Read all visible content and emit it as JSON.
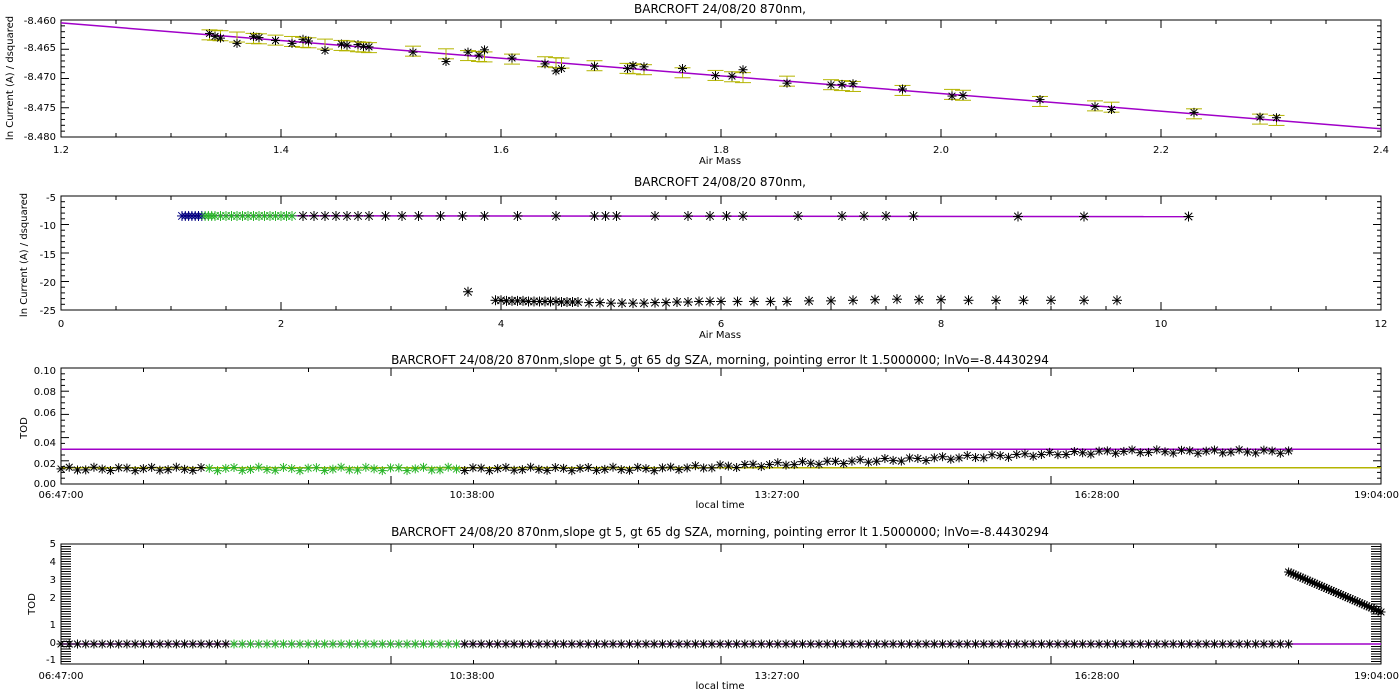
{
  "colors": {
    "axes": "#000000",
    "fit_line": "#a000c8",
    "error_bar": "#b4b400",
    "morning_points": "#000000",
    "selected_points": "#28b428",
    "first_points": "#000080"
  },
  "chart_data": [
    {
      "type": "scatter",
      "title": "BARCROFT 24/08/20 870nm,",
      "xlabel": "Air Mass",
      "ylabel": "ln Current (A) / dsquared",
      "xlim": [
        1.2,
        2.4
      ],
      "ylim": [
        -8.48,
        -8.46
      ],
      "xticks": [
        "1.2",
        "1.4",
        "1.6",
        "1.8",
        "2.0",
        "2.2",
        "2.4"
      ],
      "yticks": [
        "-8.480",
        "-8.475",
        "-8.470",
        "-8.465",
        "-8.460"
      ],
      "series": [
        {
          "role": "fit",
          "type": "line",
          "x": [
            1.2,
            2.4
          ],
          "y": [
            -8.4605,
            -8.4786
          ]
        },
        {
          "role": "points",
          "type": "scatter_errorbar",
          "x": [
            1.335,
            1.34,
            1.345,
            1.36,
            1.375,
            1.38,
            1.395,
            1.41,
            1.42,
            1.425,
            1.44,
            1.455,
            1.46,
            1.47,
            1.475,
            1.48,
            1.52,
            1.55,
            1.57,
            1.58,
            1.585,
            1.61,
            1.64,
            1.65,
            1.655,
            1.685,
            1.715,
            1.72,
            1.73,
            1.765,
            1.795,
            1.81,
            1.82,
            1.86,
            1.9,
            1.91,
            1.92,
            1.965,
            2.01,
            2.02,
            2.09,
            2.14,
            2.155,
            2.23,
            2.29,
            2.305
          ],
          "y": [
            -8.4623,
            -8.4628,
            -8.4631,
            -8.464,
            -8.4628,
            -8.463,
            -8.4635,
            -8.464,
            -8.4633,
            -8.4636,
            -8.4652,
            -8.4641,
            -8.4643,
            -8.4642,
            -8.4645,
            -8.4646,
            -8.4655,
            -8.4671,
            -8.4655,
            -8.466,
            -8.4651,
            -8.4665,
            -8.4675,
            -8.4687,
            -8.4683,
            -8.4679,
            -8.4683,
            -8.4678,
            -8.468,
            -8.4683,
            -8.4695,
            -8.4696,
            -8.4685,
            -8.4708,
            -8.4711,
            -8.471,
            -8.4709,
            -8.4718,
            -8.473,
            -8.4729,
            -8.4736,
            -8.4748,
            -8.4753,
            -8.4758,
            -8.4766,
            -8.4767
          ]
        }
      ]
    },
    {
      "type": "scatter",
      "title": "BARCROFT 24/08/20 870nm,",
      "xlabel": "Air Mass",
      "ylabel": "ln Current (A) / dsquared",
      "xlim": [
        0,
        12
      ],
      "ylim": [
        -25,
        -5
      ],
      "xticks": [
        "0",
        "2",
        "4",
        "6",
        "8",
        "10",
        "12"
      ],
      "yticks": [
        "-25",
        "-20",
        "-15",
        "-10",
        "-5"
      ],
      "series": [
        {
          "role": "fit",
          "type": "line",
          "x": [
            1.1,
            10.25
          ],
          "y": [
            -8.46,
            -8.62
          ]
        },
        {
          "role": "upper_points",
          "type": "scatter",
          "x": [
            1.1,
            1.13,
            1.16,
            1.19,
            1.22,
            1.25,
            1.28,
            1.31,
            1.34,
            1.37,
            1.4,
            1.45,
            1.5,
            1.55,
            1.6,
            1.65,
            1.7,
            1.75,
            1.8,
            1.85,
            1.9,
            1.95,
            2.0,
            2.05,
            2.1,
            2.2,
            2.3,
            2.4,
            2.5,
            2.6,
            2.7,
            2.8,
            2.95,
            3.1,
            3.25,
            3.45,
            3.65,
            3.85,
            4.15,
            4.5,
            4.85,
            4.95,
            5.05,
            5.4,
            5.7,
            5.9,
            6.05,
            6.2,
            6.7,
            7.1,
            7.3,
            7.5,
            7.75,
            8.7,
            9.3,
            10.25
          ],
          "y": [
            -8.5,
            -8.5,
            -8.5,
            -8.5,
            -8.5,
            -8.5,
            -8.5,
            -8.5,
            -8.5,
            -8.5,
            -8.5,
            -8.5,
            -8.5,
            -8.5,
            -8.5,
            -8.5,
            -8.5,
            -8.5,
            -8.5,
            -8.5,
            -8.5,
            -8.5,
            -8.5,
            -8.5,
            -8.5,
            -8.5,
            -8.5,
            -8.5,
            -8.5,
            -8.5,
            -8.5,
            -8.5,
            -8.5,
            -8.5,
            -8.5,
            -8.5,
            -8.5,
            -8.5,
            -8.5,
            -8.5,
            -8.5,
            -8.5,
            -8.5,
            -8.5,
            -8.5,
            -8.5,
            -8.5,
            -8.5,
            -8.5,
            -8.5,
            -8.5,
            -8.5,
            -8.5,
            -8.6,
            -8.6,
            -8.6
          ],
          "selected_x_range": [
            1.3,
            2.15
          ],
          "first_x_range": [
            1.1,
            1.3
          ]
        },
        {
          "role": "lower_points",
          "type": "scatter",
          "x": [
            3.7,
            3.95,
            4.0,
            4.05,
            4.1,
            4.15,
            4.2,
            4.25,
            4.3,
            4.35,
            4.4,
            4.45,
            4.5,
            4.55,
            4.6,
            4.65,
            4.7,
            4.8,
            4.9,
            5.0,
            5.1,
            5.2,
            5.3,
            5.4,
            5.5,
            5.6,
            5.7,
            5.8,
            5.9,
            6.0,
            6.15,
            6.3,
            6.45,
            6.6,
            6.8,
            7.0,
            7.2,
            7.4,
            7.6,
            7.8,
            8.0,
            8.25,
            8.5,
            8.75,
            9.0,
            9.3,
            9.6
          ],
          "y": [
            -21.8,
            -23.3,
            -23.3,
            -23.4,
            -23.4,
            -23.4,
            -23.4,
            -23.5,
            -23.5,
            -23.5,
            -23.5,
            -23.5,
            -23.5,
            -23.6,
            -23.6,
            -23.6,
            -23.6,
            -23.7,
            -23.7,
            -23.8,
            -23.8,
            -23.8,
            -23.8,
            -23.7,
            -23.7,
            -23.6,
            -23.6,
            -23.5,
            -23.5,
            -23.5,
            -23.5,
            -23.5,
            -23.5,
            -23.5,
            -23.4,
            -23.4,
            -23.3,
            -23.2,
            -23.1,
            -23.2,
            -23.2,
            -23.3,
            -23.3,
            -23.3,
            -23.3,
            -23.3,
            -23.3
          ]
        }
      ]
    },
    {
      "type": "scatter",
      "title": "BARCROFT 24/08/20 870nm,slope gt 5, gt 65 dg SZA, morning, pointing error lt 1.5000000; lnVo=-8.4430294",
      "xlabel": "local time",
      "ylabel": "TOD",
      "xlim": [
        0,
        1
      ],
      "ylim": [
        0,
        0.1
      ],
      "xticks": [
        "06:47:00",
        "10:38:00",
        "13:27:00",
        "16:28:00",
        "19:04:00"
      ],
      "yticks": [
        "0.00",
        "0.02",
        "0.04",
        "0.06",
        "0.08",
        "0.10"
      ],
      "series": [
        {
          "role": "hline_upper",
          "y": 0.03
        },
        {
          "role": "hline_lower",
          "y": 0.014
        },
        {
          "role": "tod_points",
          "type": "scatter",
          "x_range": [
            0,
            0.93
          ],
          "y_start": 0.013,
          "y_end": 0.028,
          "selected_x_range": [
            0.11,
            0.3
          ]
        }
      ]
    },
    {
      "type": "scatter",
      "title": "BARCROFT 24/08/20 870nm,slope gt 5, gt 65 dg SZA, morning, pointing error lt 1.5000000; lnVo=-8.4430294",
      "xlabel": "local time",
      "ylabel": "TOD",
      "xlim": [
        0,
        1
      ],
      "ylim": [
        -1,
        5
      ],
      "xticks": [
        "06:47:00",
        "10:38:00",
        "13:27:00",
        "16:28:00",
        "19:04:00"
      ],
      "yticks": [
        "-1",
        "0",
        "1",
        "2",
        "3",
        "4",
        "5"
      ],
      "series": [
        {
          "role": "hline",
          "y": 0.0
        },
        {
          "role": "tod_points",
          "type": "scatter",
          "x_range": [
            0,
            0.93
          ],
          "y": 0.0,
          "selected_x_range": [
            0.13,
            0.3
          ]
        },
        {
          "role": "tail_points",
          "type": "scatter",
          "x_range": [
            0.93,
            1.0
          ],
          "y_start": 3.6,
          "y_end": 1.6
        }
      ]
    }
  ]
}
